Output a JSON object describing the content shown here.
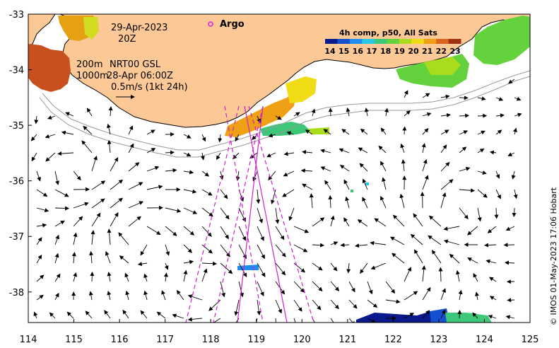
{
  "map": {
    "x_ticks": [
      "114",
      "115",
      "116",
      "117",
      "118",
      "119",
      "120",
      "121",
      "122",
      "123",
      "124",
      "125"
    ],
    "y_ticks": [
      "-33",
      "-34",
      "-35",
      "-36",
      "-37",
      "-38"
    ],
    "lon_range": [
      114,
      125
    ],
    "lat_range": [
      -38.55,
      -33.0
    ],
    "land_color": "#fbc896"
  },
  "annotations": {
    "date": "29-Apr-2023",
    "time": "20Z",
    "contour_200": "200m",
    "contour_1000": "1000m",
    "product": "NRT00 GSL",
    "product_time": "28-Apr 06:00Z",
    "scale_label": "0.5m/s (1kt 24h)"
  },
  "legend": {
    "argo_label": "Argo",
    "argo_color": "#e020e0"
  },
  "colorbar": {
    "title": "4h comp, p50, All Sats",
    "labels": [
      "14",
      "15",
      "16",
      "17",
      "18",
      "19",
      "20",
      "21",
      "22",
      "23"
    ],
    "colors": [
      "#0a1a8c",
      "#1450d0",
      "#1e8cf0",
      "#28c8e6",
      "#3cc878",
      "#64d23c",
      "#aadc1e",
      "#f0dc14",
      "#f0a014",
      "#dc641e",
      "#a03214"
    ]
  },
  "credit": "© IMOS 01-May-2023 17:06 Hobart"
}
